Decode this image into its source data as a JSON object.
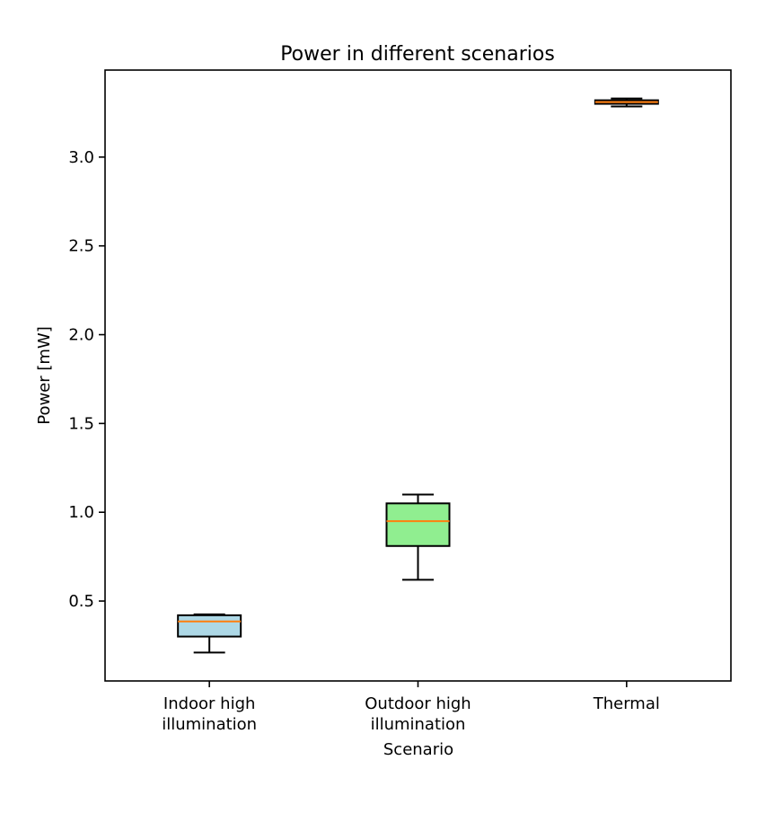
{
  "chart_data": {
    "type": "box",
    "title": "Power in different scenarios",
    "xlabel": "Scenario",
    "ylabel": "Power [mW]",
    "ylim": [
      0.05,
      3.49
    ],
    "yticks": [
      "0.5",
      "1.0",
      "1.5",
      "2.0",
      "2.5",
      "3.0"
    ],
    "grid": false,
    "categories": [
      [
        "Indoor high",
        "illumination"
      ],
      [
        "Outdoor high",
        "illumination"
      ],
      [
        "Thermal"
      ]
    ],
    "boxes": [
      {
        "whisker_low": 0.21,
        "q1": 0.3,
        "median": 0.385,
        "q3": 0.42,
        "whisker_high": 0.425,
        "color": "#add8e6"
      },
      {
        "whisker_low": 0.62,
        "q1": 0.81,
        "median": 0.95,
        "q3": 1.05,
        "whisker_high": 1.1,
        "color": "#90ee90"
      },
      {
        "whisker_low": 3.285,
        "q1": 3.3,
        "median": 3.31,
        "q3": 3.32,
        "whisker_high": 3.33,
        "color": "#ffa07a"
      }
    ],
    "median_color": "#ff7f0e"
  }
}
